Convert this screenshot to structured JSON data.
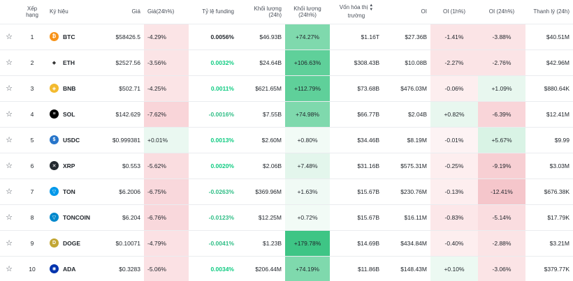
{
  "headers": {
    "star": "",
    "rank": "Xếp hạng",
    "symbol": "Ký hiệu",
    "price": "Giá",
    "price_chg": "Giá(24h%)",
    "funding": "Tỷ lệ funding",
    "volume": "Khối lượng (24h)",
    "volume_chg": "Khối lượng (24h%)",
    "mcap_line1": "Vốn hóa thị",
    "mcap_line2": "trường",
    "oi": "OI",
    "oi_1h": "OI (1h%)",
    "oi_24h": "OI (24h%)",
    "liq": "Thanh lý (24h)"
  },
  "rows": [
    {
      "rank": "1",
      "symbol": "BTC",
      "icon": "bitcoin-icon",
      "icon_color": "#f7931a",
      "glyph": "₿",
      "price": "$58426.5",
      "price_chg": "-4.29%",
      "price_bg": "#fbe4e6",
      "funding": "0.0056%",
      "funding_cls": "fund-zero",
      "volume": "$46.93B",
      "volume_chg": "+74.27%",
      "vol_bg": "#7fd9ad",
      "mcap": "$1.16T",
      "oi": "$27.36B",
      "oi_1h": "-1.41%",
      "oi1_bg": "#fbe4e6",
      "oi_24h": "-3.88%",
      "oi24_bg": "#fbe4e6",
      "liq": "$40.51M"
    },
    {
      "rank": "2",
      "symbol": "ETH",
      "icon": "ethereum-icon",
      "icon_color": "#ffffff",
      "glyph": "◆",
      "price": "$2527.56",
      "price_chg": "-3.56%",
      "price_bg": "#fbe4e6",
      "funding": "0.0032%",
      "funding_cls": "fund-pos",
      "volume": "$24.64B",
      "volume_chg": "+106.63%",
      "vol_bg": "#5fd09a",
      "mcap": "$308.43B",
      "oi": "$10.08B",
      "oi_1h": "-2.27%",
      "oi1_bg": "#fbe4e6",
      "oi_24h": "-2.76%",
      "oi24_bg": "#fbe4e6",
      "liq": "$42.96M"
    },
    {
      "rank": "3",
      "symbol": "BNB",
      "icon": "bnb-icon",
      "icon_color": "#f3ba2f",
      "glyph": "◈",
      "price": "$502.71",
      "price_chg": "-4.25%",
      "price_bg": "#fbe4e6",
      "funding": "0.0011%",
      "funding_cls": "fund-pos",
      "volume": "$621.65M",
      "volume_chg": "+112.79%",
      "vol_bg": "#5fd09a",
      "mcap": "$73.68B",
      "oi": "$476.03M",
      "oi_1h": "-0.06%",
      "oi1_bg": "#fdeeef",
      "oi_24h": "+1.09%",
      "oi24_bg": "#e8f7ef",
      "liq": "$880.64K"
    },
    {
      "rank": "4",
      "symbol": "SOL",
      "icon": "solana-icon",
      "icon_color": "#000000",
      "glyph": "≡",
      "price": "$142.629",
      "price_chg": "-7.62%",
      "price_bg": "#f9d5d9",
      "funding": "-0.0016%",
      "funding_cls": "fund-neg",
      "volume": "$7.55B",
      "volume_chg": "+74.98%",
      "vol_bg": "#7fd9ad",
      "mcap": "$66.77B",
      "oi": "$2.04B",
      "oi_1h": "+0.82%",
      "oi1_bg": "#e8f7ef",
      "oi_24h": "-6.39%",
      "oi24_bg": "#f9d5d9",
      "liq": "$12.41M"
    },
    {
      "rank": "5",
      "symbol": "USDC",
      "icon": "usdc-icon",
      "icon_color": "#2775ca",
      "glyph": "$",
      "price": "$0.999381",
      "price_chg": "+0.01%",
      "price_bg": "#eaf8f1",
      "funding": "0.0013%",
      "funding_cls": "fund-pos",
      "volume": "$2.60M",
      "volume_chg": "+0.80%",
      "vol_bg": "#f2fbf6",
      "mcap": "$34.46B",
      "oi": "$8.19M",
      "oi_1h": "-0.01%",
      "oi1_bg": "#fdf3f4",
      "oi_24h": "+5.67%",
      "oi24_bg": "#d9f3e5",
      "liq": "$9.99"
    },
    {
      "rank": "6",
      "symbol": "XRP",
      "icon": "xrp-icon",
      "icon_color": "#23292f",
      "glyph": "✕",
      "price": "$0.553",
      "price_chg": "-5.62%",
      "price_bg": "#fadde0",
      "funding": "0.0020%",
      "funding_cls": "fund-pos",
      "volume": "$2.06B",
      "volume_chg": "+7.48%",
      "vol_bg": "#e3f6ec",
      "mcap": "$31.16B",
      "oi": "$575.31M",
      "oi_1h": "-0.25%",
      "oi1_bg": "#fdeeef",
      "oi_24h": "-9.19%",
      "oi24_bg": "#f7cfd3",
      "liq": "$3.03M"
    },
    {
      "rank": "7",
      "symbol": "TON",
      "icon": "ton-icon",
      "icon_color": "#0098ea",
      "glyph": "▽",
      "price": "$6.2006",
      "price_chg": "-6.75%",
      "price_bg": "#f9d8dc",
      "funding": "-0.0263%",
      "funding_cls": "fund-neg",
      "volume": "$369.96M",
      "volume_chg": "+1.63%",
      "vol_bg": "#f0faf5",
      "mcap": "$15.67B",
      "oi": "$230.76M",
      "oi_1h": "-0.13%",
      "oi1_bg": "#fdeeef",
      "oi_24h": "-12.41%",
      "oi24_bg": "#f5c6cb",
      "liq": "$676.38K"
    },
    {
      "rank": "8",
      "symbol": "TONCOIN",
      "icon": "toncoin-icon",
      "icon_color": "#0088cc",
      "glyph": "▽",
      "price": "$6.204",
      "price_chg": "-6.76%",
      "price_bg": "#f9d8dc",
      "funding": "-0.0123%",
      "funding_cls": "fund-neg",
      "volume": "$12.25M",
      "volume_chg": "+0.72%",
      "vol_bg": "#f2fbf6",
      "mcap": "$15.67B",
      "oi": "$16.11M",
      "oi_1h": "-0.83%",
      "oi1_bg": "#fce7e9",
      "oi_24h": "-5.14%",
      "oi24_bg": "#fadde0",
      "liq": "$17.79K"
    },
    {
      "rank": "9",
      "symbol": "DOGE",
      "icon": "doge-icon",
      "icon_color": "#c2a633",
      "glyph": "D",
      "price": "$0.10071",
      "price_chg": "-4.79%",
      "price_bg": "#fbe1e4",
      "funding": "-0.0041%",
      "funding_cls": "fund-neg",
      "volume": "$1.23B",
      "volume_chg": "+179.78%",
      "vol_bg": "#3ec585",
      "mcap": "$14.69B",
      "oi": "$434.84M",
      "oi_1h": "-0.40%",
      "oi1_bg": "#fdeeef",
      "oi_24h": "-2.88%",
      "oi24_bg": "#fbe4e6",
      "liq": "$3.21M"
    },
    {
      "rank": "10",
      "symbol": "ADA",
      "icon": "cardano-icon",
      "icon_color": "#0033ad",
      "glyph": "✺",
      "price": "$0.3283",
      "price_chg": "-5.06%",
      "price_bg": "#fbe1e4",
      "funding": "0.0034%",
      "funding_cls": "fund-pos",
      "volume": "$206.44M",
      "volume_chg": "+74.19%",
      "vol_bg": "#7fd9ad",
      "mcap": "$11.86B",
      "oi": "$148.43M",
      "oi_1h": "+0.10%",
      "oi1_bg": "#ecf9f2",
      "oi_24h": "-3.06%",
      "oi24_bg": "#fbe4e6",
      "liq": "$379.77K"
    }
  ]
}
